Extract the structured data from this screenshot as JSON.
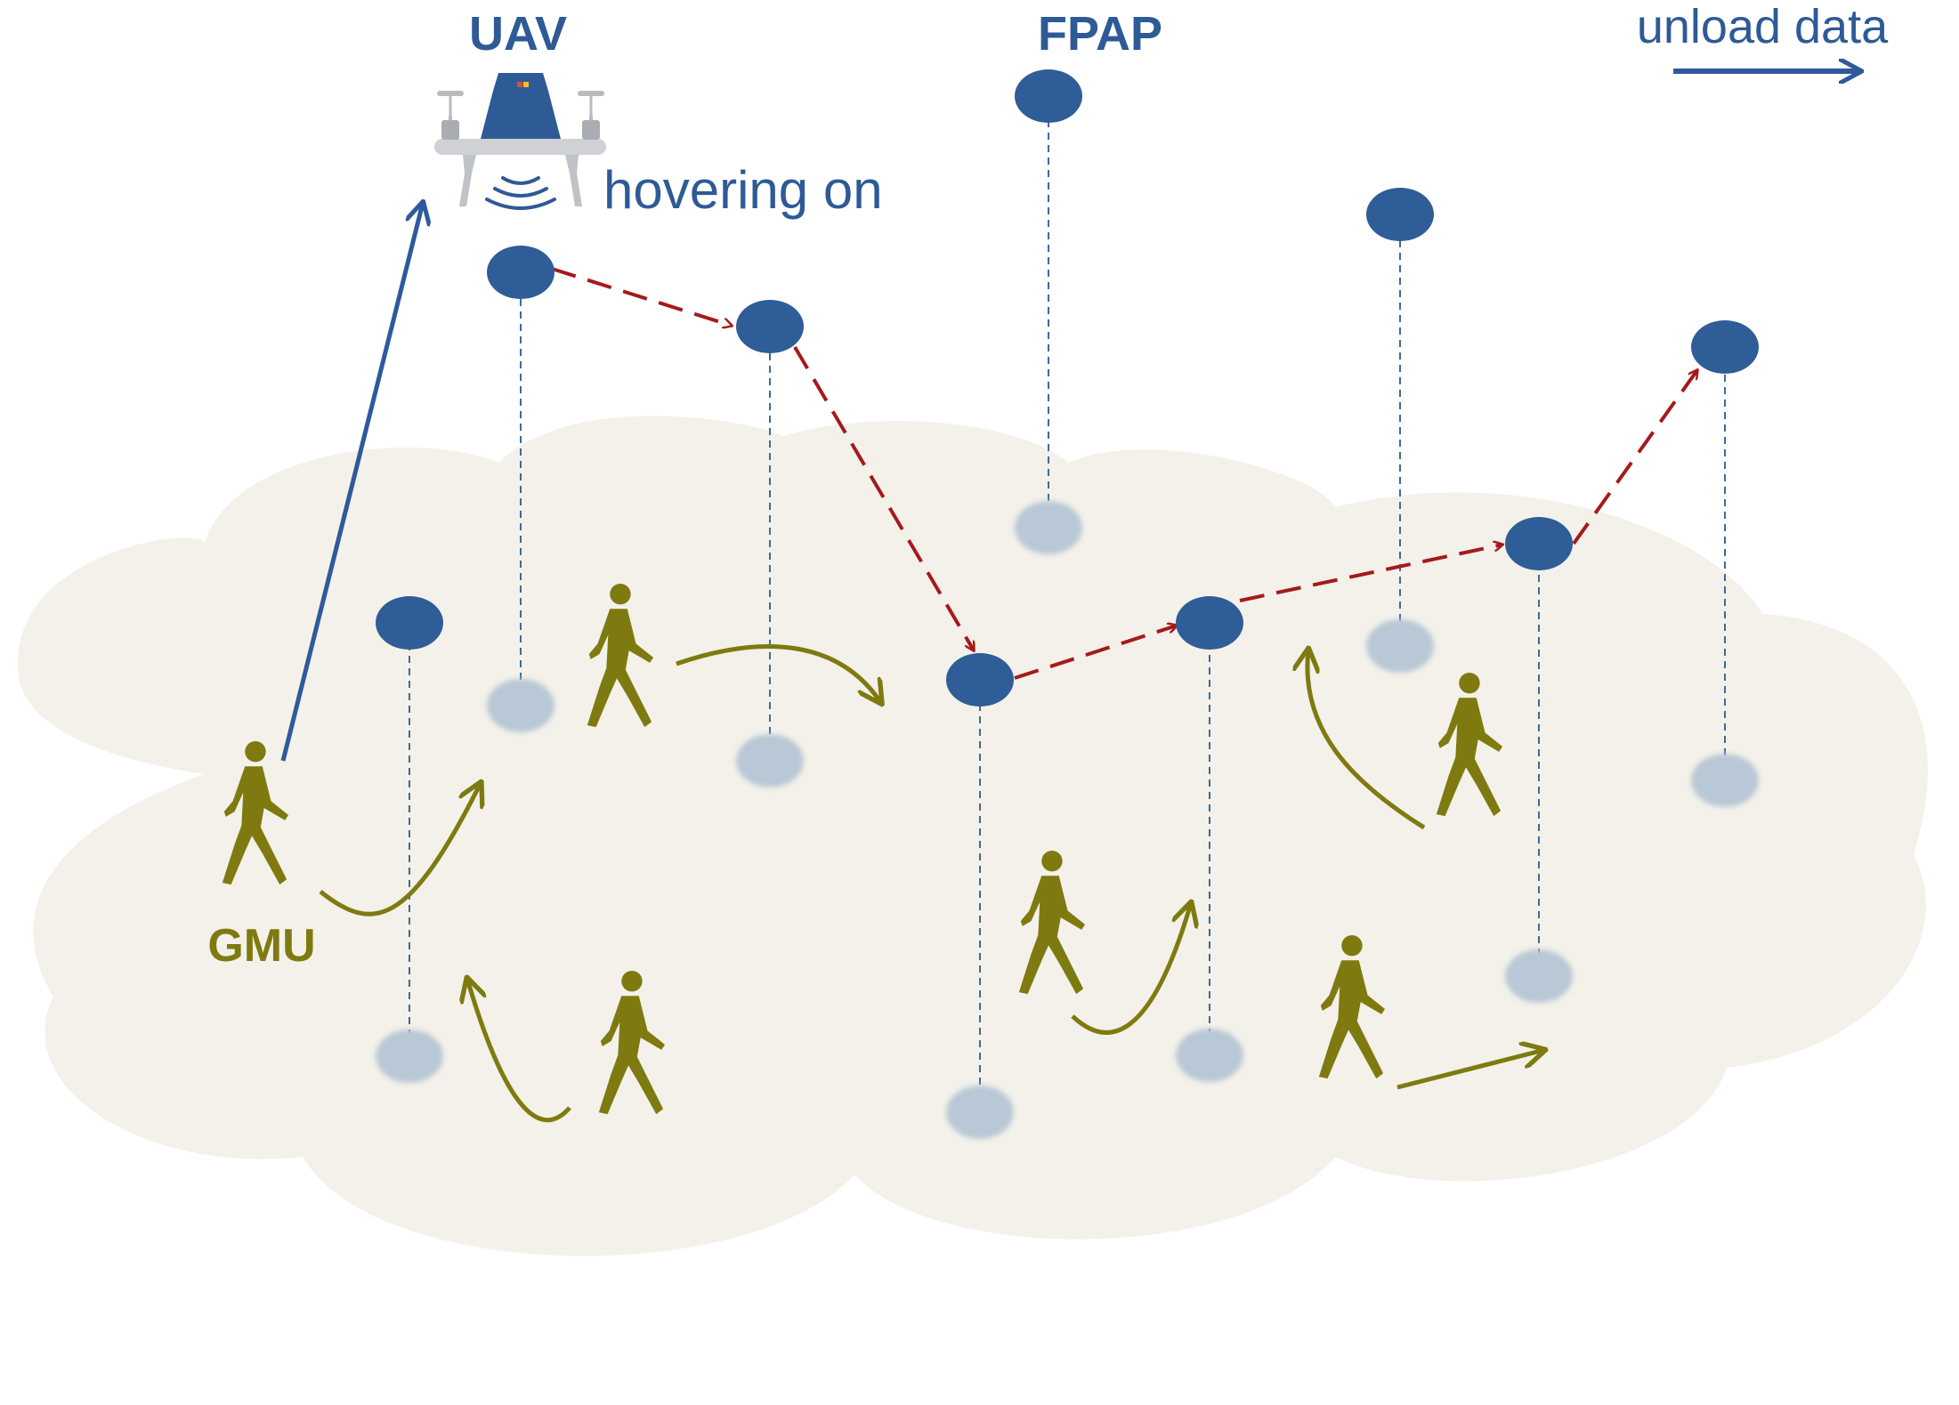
{
  "labels": {
    "uav": "UAV",
    "fpap": "FPAP",
    "unload": "unload data",
    "hovering": "hovering on",
    "gmu": "GMU"
  },
  "colors": {
    "cloud": "#f3f1e9",
    "node_blue": "#2e5d98",
    "ground_node": "#b9c8d6",
    "olive": "#7f7a10",
    "dashed_red": "#a6191b",
    "uplink_blue": "#2e5a9c",
    "label_blue": "#2e5a96",
    "stem": "#3f6a99"
  },
  "icons": {
    "uav": "drone-icon",
    "signal": "signal-waves-icon",
    "person": "walking-person-icon"
  }
}
